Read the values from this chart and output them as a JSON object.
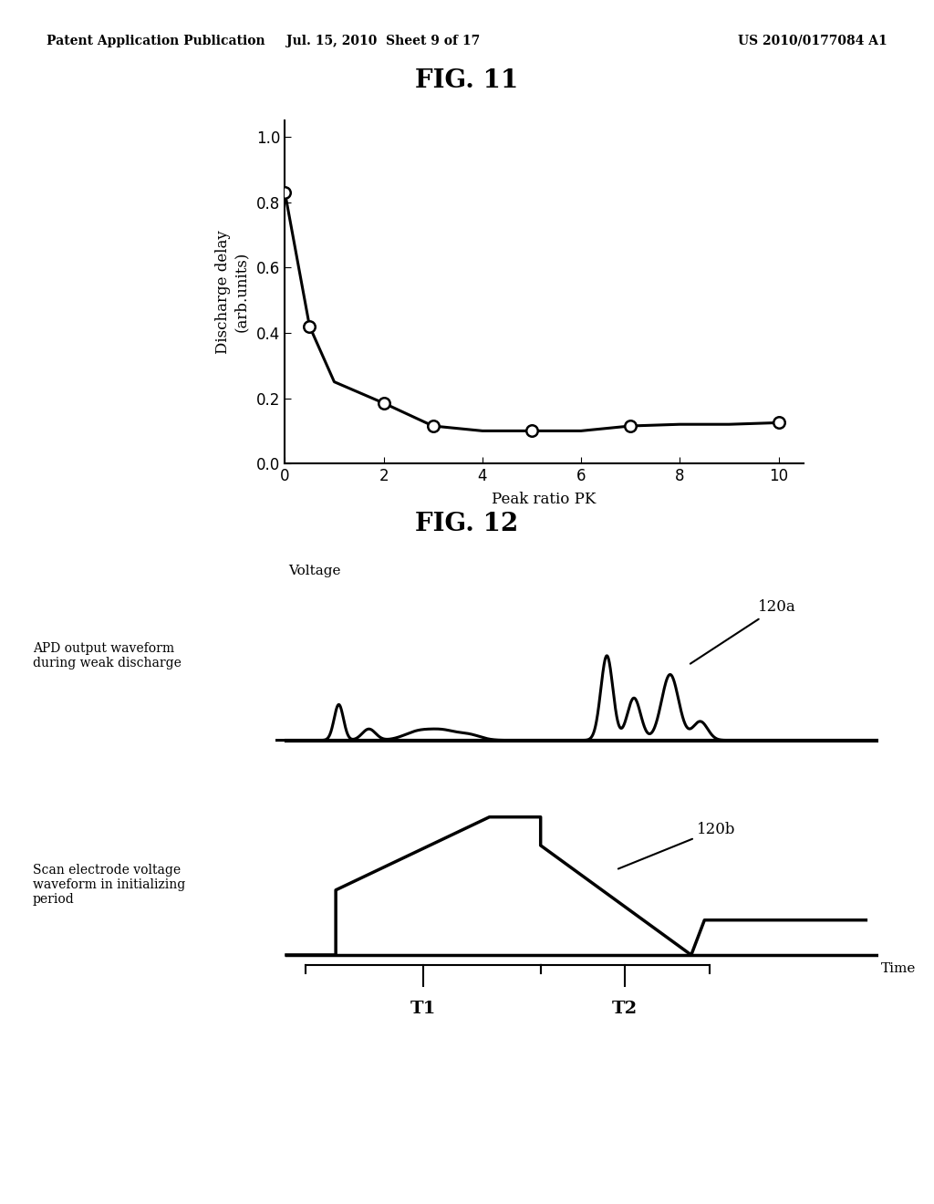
{
  "fig11_title": "FIG. 11",
  "fig12_title": "FIG. 12",
  "header_left": "Patent Application Publication",
  "header_mid": "Jul. 15, 2010  Sheet 9 of 17",
  "header_right": "US 2010/0177084 A1",
  "fig11": {
    "x_data": [
      0,
      0.5,
      1,
      2,
      3,
      4,
      5,
      6,
      7,
      8,
      9,
      10
    ],
    "y_data": [
      0.83,
      0.42,
      0.25,
      0.185,
      0.115,
      0.1,
      0.1,
      0.1,
      0.115,
      0.12,
      0.12,
      0.125
    ],
    "marker_x": [
      0,
      0.5,
      2,
      3,
      5,
      7,
      10
    ],
    "marker_y": [
      0.83,
      0.42,
      0.185,
      0.115,
      0.1,
      0.115,
      0.125
    ],
    "xlabel": "Peak ratio PK",
    "ylabel": "Discharge delay\n(arb.units)",
    "xlim": [
      0,
      10.5
    ],
    "ylim": [
      0,
      1.05
    ],
    "xticks": [
      0,
      2,
      4,
      6,
      8,
      10
    ],
    "yticks": [
      0,
      0.2,
      0.4,
      0.6,
      0.8,
      1.0
    ]
  },
  "fig12": {
    "apd_label": "APD output waveform\nduring weak discharge",
    "scan_label": "Scan electrode voltage\nwaveform in initializing\nperiod",
    "voltage_label": "Voltage",
    "time_label": "Time",
    "label_120a": "120a",
    "label_120b": "120b",
    "t1_label": "T1",
    "t2_label": "T2"
  },
  "background_color": "#ffffff",
  "line_color": "#000000",
  "text_color": "#000000"
}
